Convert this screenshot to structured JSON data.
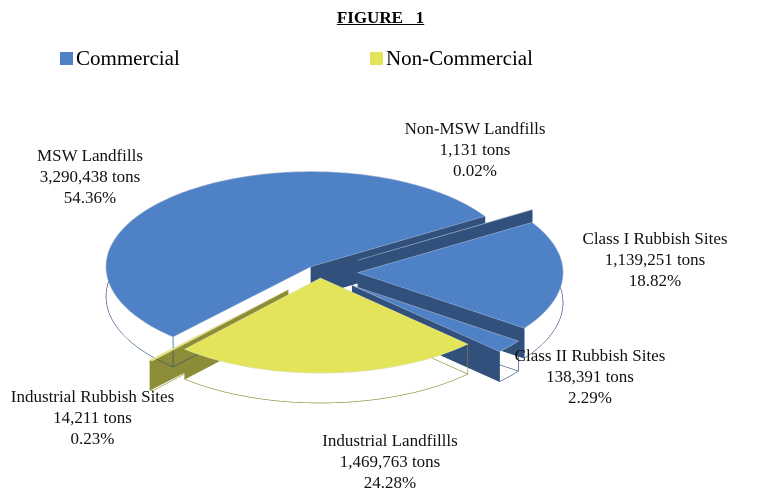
{
  "chart_data": {
    "type": "pie",
    "title": "FIGURE   1",
    "legend": [
      {
        "name": "Commercial",
        "color": "#4f81c7"
      },
      {
        "name": "Non-Commercial",
        "color": "#e4e45a"
      }
    ],
    "categories": [
      "Non-MSW Landfills",
      "Class I Rubbish Sites",
      "Class II Rubbish Sites",
      "Industrial Landfillls",
      "Industrial Rubbish Sites",
      "MSW Landfills"
    ],
    "slice_group": [
      0,
      0,
      0,
      1,
      1,
      0
    ],
    "tons_labels": [
      "1,131 tons",
      "1,139,251 tons",
      "138,391 tons",
      "1,469,763 tons",
      "14,211 tons",
      "3,290,438 tons"
    ],
    "values": [
      0.02,
      18.82,
      2.29,
      24.28,
      0.23,
      54.36
    ],
    "value_labels": [
      "0.02%",
      "18.82%",
      "2.29%",
      "24.28%",
      "0.23%",
      "54.36%"
    ]
  }
}
